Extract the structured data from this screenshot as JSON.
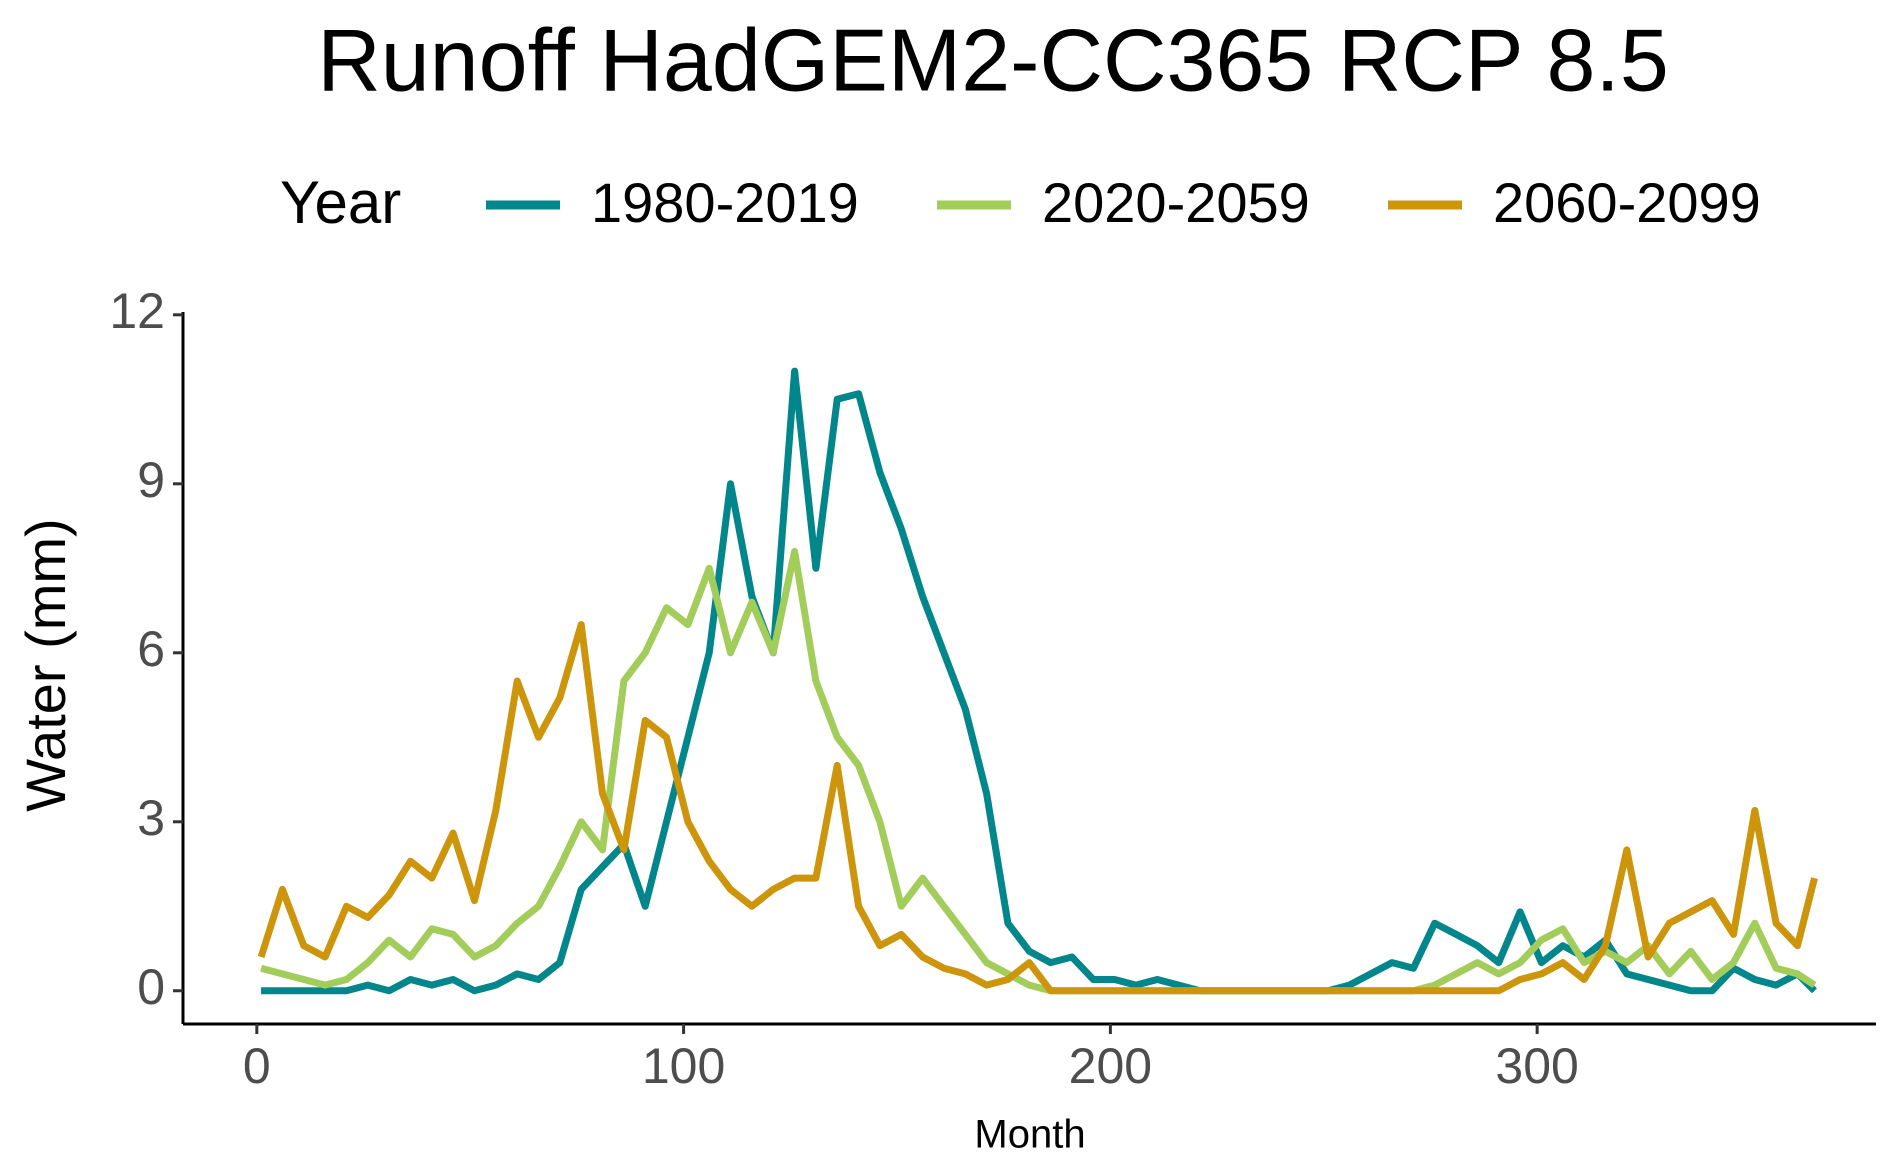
{
  "chart_data": {
    "type": "line",
    "title": "Runoff HadGEM2-CC365 RCP 8.5",
    "legend_title": "Year",
    "legend_position": "top",
    "x_label": "Month",
    "y_label": "Water (mm)",
    "x": [
      1,
      6,
      11,
      16,
      21,
      26,
      31,
      36,
      41,
      46,
      51,
      56,
      61,
      66,
      71,
      76,
      81,
      86,
      91,
      96,
      101,
      106,
      111,
      116,
      121,
      126,
      131,
      136,
      141,
      146,
      151,
      156,
      161,
      166,
      171,
      176,
      181,
      186,
      191,
      196,
      201,
      206,
      211,
      216,
      221,
      226,
      231,
      236,
      241,
      246,
      251,
      256,
      261,
      266,
      271,
      276,
      281,
      286,
      291,
      296,
      301,
      306,
      311,
      316,
      321,
      326,
      331,
      336,
      341,
      346,
      351,
      356,
      361,
      365
    ],
    "series": [
      {
        "name": "1980-2019",
        "color": "#00868B",
        "values": [
          0,
          0,
          0,
          0,
          0,
          0.1,
          0,
          0.2,
          0.1,
          0.2,
          0,
          0.1,
          0.3,
          0.2,
          0.5,
          1.8,
          2.2,
          2.6,
          1.5,
          3,
          4.5,
          6,
          9,
          7,
          6,
          11,
          7.5,
          10.5,
          10.6,
          9.2,
          8.2,
          7,
          6,
          5,
          3.5,
          1.2,
          0.7,
          0.5,
          0.6,
          0.2,
          0.2,
          0.1,
          0.2,
          0.1,
          0,
          0,
          0,
          0,
          0,
          0,
          0,
          0.1,
          0.3,
          0.5,
          0.4,
          1.2,
          1,
          0.8,
          0.5,
          1.4,
          0.5,
          0.8,
          0.6,
          0.9,
          0.3,
          0.2,
          0.1,
          0,
          0,
          0.4,
          0.2,
          0.1,
          0.3,
          0
        ]
      },
      {
        "name": "2020-2059",
        "color": "#A2CD5A",
        "values": [
          0.4,
          0.3,
          0.2,
          0.1,
          0.2,
          0.5,
          0.9,
          0.6,
          1.1,
          1.0,
          0.6,
          0.8,
          1.2,
          1.5,
          2.2,
          3.0,
          2.5,
          5.5,
          6.0,
          6.8,
          6.5,
          7.5,
          6.0,
          6.9,
          6.0,
          7.8,
          5.5,
          4.5,
          4.0,
          3.0,
          1.5,
          2.0,
          1.5,
          1.0,
          0.5,
          0.3,
          0.1,
          0,
          0,
          0,
          0,
          0,
          0,
          0,
          0,
          0,
          0,
          0,
          0,
          0,
          0,
          0,
          0,
          0,
          0,
          0.1,
          0.3,
          0.5,
          0.3,
          0.5,
          0.9,
          1.1,
          0.5,
          0.7,
          0.5,
          0.8,
          0.3,
          0.7,
          0.2,
          0.5,
          1.2,
          0.4,
          0.3,
          0.1
        ]
      },
      {
        "name": "2060-2099",
        "color": "#CD950C",
        "values": [
          0.6,
          1.8,
          0.8,
          0.6,
          1.5,
          1.3,
          1.7,
          2.3,
          2.0,
          2.8,
          1.6,
          3.2,
          5.5,
          4.5,
          5.2,
          6.5,
          3.5,
          2.5,
          4.8,
          4.5,
          3.0,
          2.3,
          1.8,
          1.5,
          1.8,
          2.0,
          2.0,
          4.0,
          1.5,
          0.8,
          1.0,
          0.6,
          0.4,
          0.3,
          0.1,
          0.2,
          0.5,
          0,
          0,
          0,
          0,
          0,
          0,
          0,
          0,
          0,
          0,
          0,
          0,
          0,
          0,
          0,
          0,
          0,
          0,
          0,
          0,
          0,
          0,
          0.2,
          0.3,
          0.5,
          0.2,
          0.8,
          2.5,
          0.6,
          1.2,
          1.4,
          1.6,
          1.0,
          3.2,
          1.2,
          0.8,
          2.0
        ]
      }
    ],
    "xlim": [
      -17.3,
      379.4
    ],
    "xticks": [
      0,
      100,
      200,
      300
    ],
    "ylim": [
      -0.59,
      12.05
    ],
    "yticks": [
      0,
      3,
      6,
      9,
      12
    ],
    "grid": false
  }
}
